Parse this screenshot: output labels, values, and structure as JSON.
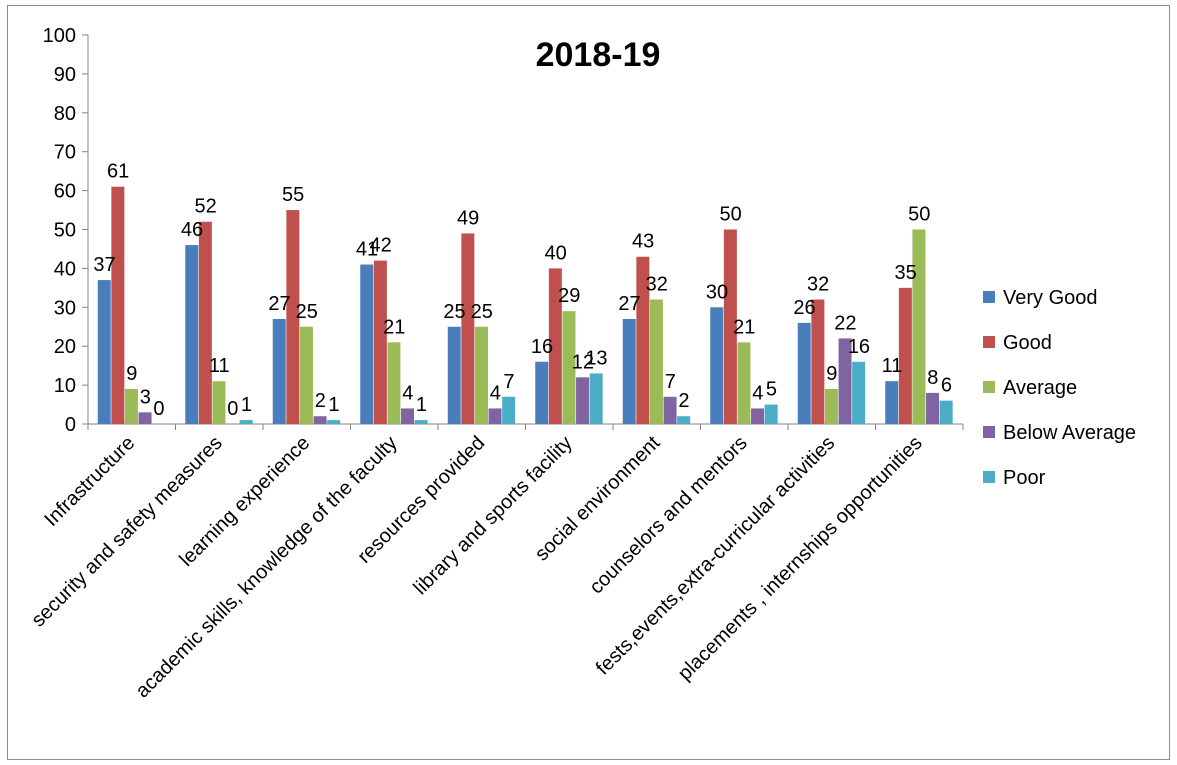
{
  "chart_data": {
    "type": "bar",
    "title": "2018-19",
    "xlabel": "",
    "ylabel": "",
    "ylim": [
      0,
      100
    ],
    "yticks": [
      0,
      10,
      20,
      30,
      40,
      50,
      60,
      70,
      80,
      90,
      100
    ],
    "grid": false,
    "legend_position": "right",
    "categories": [
      "Infrastructure",
      "security and safety measures",
      "learning experience",
      "academic skills, knowledge of the faculty",
      "resources provided",
      "library and sports facility",
      "social environment",
      "counselors and mentors",
      "fests,events,extra-curricular activities",
      "placements , internships opportunities"
    ],
    "series": [
      {
        "name": "Very Good",
        "color": "#4a7ebb",
        "values": [
          37,
          46,
          27,
          41,
          25,
          16,
          27,
          30,
          26,
          11
        ]
      },
      {
        "name": "Good",
        "color": "#c0504d",
        "values": [
          61,
          52,
          55,
          42,
          49,
          40,
          43,
          50,
          32,
          35
        ]
      },
      {
        "name": "Average",
        "color": "#9bbb59",
        "values": [
          9,
          11,
          25,
          21,
          25,
          29,
          32,
          21,
          9,
          50
        ]
      },
      {
        "name": "Below Average",
        "color": "#8064a2",
        "values": [
          3,
          0,
          2,
          4,
          4,
          12,
          7,
          4,
          22,
          8
        ]
      },
      {
        "name": "Poor",
        "color": "#4bacc6",
        "values": [
          0,
          1,
          1,
          1,
          7,
          13,
          2,
          5,
          16,
          6
        ]
      }
    ]
  }
}
